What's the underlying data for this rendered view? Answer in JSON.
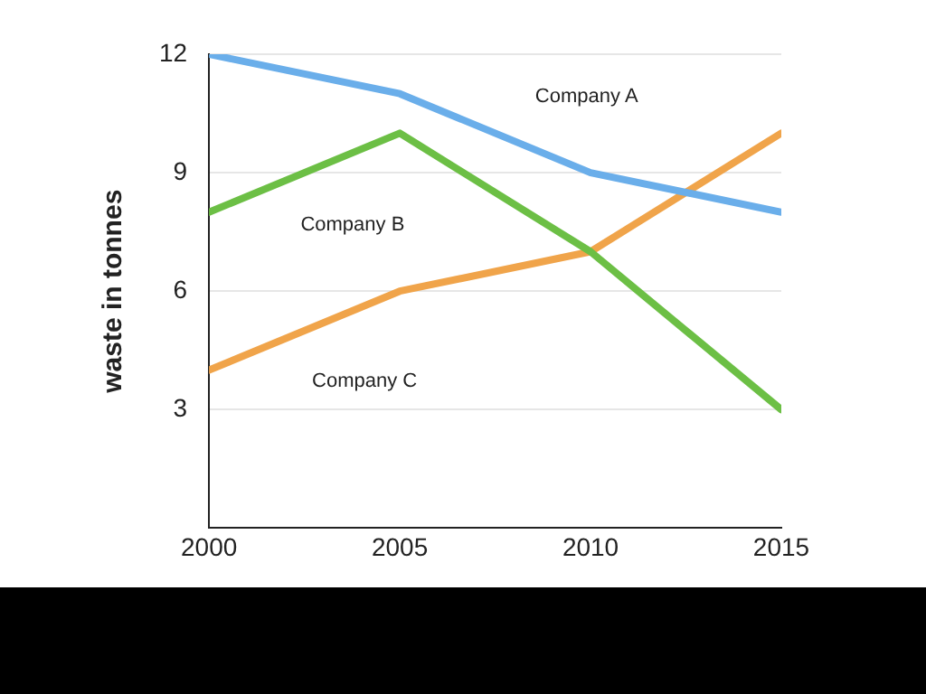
{
  "chart_data": {
    "type": "line",
    "ylabel": "waste in tonnes",
    "x": [
      2000,
      2005,
      2010,
      2015
    ],
    "xlim": [
      2000,
      2015
    ],
    "xticks": [
      2000,
      2005,
      2010,
      2015
    ],
    "ylim": [
      0,
      12
    ],
    "yticks": [
      3,
      6,
      9,
      12
    ],
    "grid": "y",
    "legend": false,
    "marker": "none",
    "series": [
      {
        "name": "Company A",
        "color": "#6aaeea",
        "values": [
          12,
          11,
          9,
          8
        ]
      },
      {
        "name": "Company B",
        "color": "#6cbf45",
        "values": [
          8,
          10,
          7,
          3
        ]
      },
      {
        "name": "Company C",
        "color": "#f0a44a",
        "values": [
          4,
          6,
          7,
          10
        ]
      }
    ]
  }
}
